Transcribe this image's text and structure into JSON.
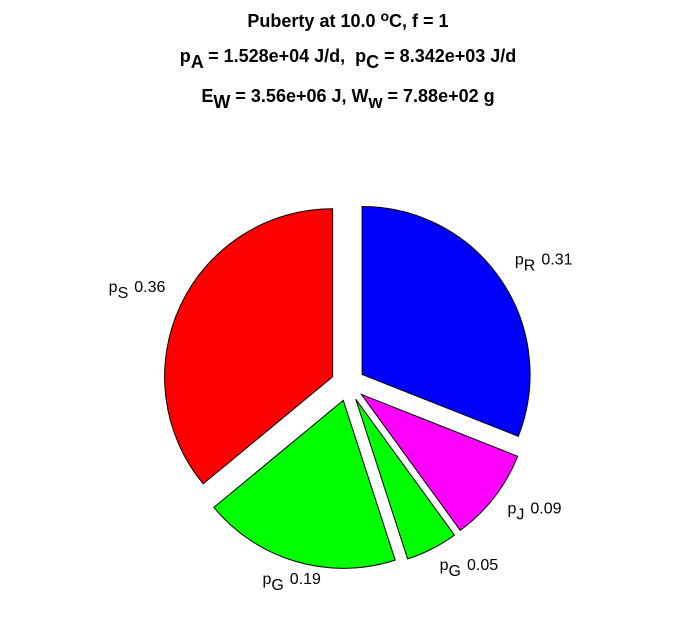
{
  "chart_data": {
    "type": "pie",
    "title": [
      [
        {
          "text": "Puberty at 10.0 "
        },
        {
          "text": "o",
          "shift": "super"
        },
        {
          "text": "C, f = 1"
        }
      ],
      [
        {
          "text": "p"
        },
        {
          "text": "A",
          "shift": "sub"
        },
        {
          "text": " = 1.528e+04 J/d,  p"
        },
        {
          "text": "C",
          "shift": "sub"
        },
        {
          "text": " = 8.342e+03 J/d"
        }
      ],
      [
        {
          "text": "E"
        },
        {
          "text": "W",
          "shift": "sub"
        },
        {
          "text": " = 3.56e+06 J, W"
        },
        {
          "text": "w",
          "shift": "sub"
        },
        {
          "text": " = 7.88e+02 g"
        }
      ]
    ],
    "categories": [
      [
        "p",
        "S"
      ],
      [
        "p",
        "G"
      ],
      [
        "p",
        "G"
      ],
      [
        "p",
        "J"
      ],
      [
        "p",
        "R"
      ]
    ],
    "values": [
      0.36,
      0.19,
      0.05,
      0.09,
      0.31
    ],
    "colors": [
      "#ff0000",
      "#00ff00",
      "#00ff00",
      "#ff00ff",
      "#0000ff"
    ],
    "start_angle": 90,
    "direction": "counterclockwise",
    "explode": true
  }
}
